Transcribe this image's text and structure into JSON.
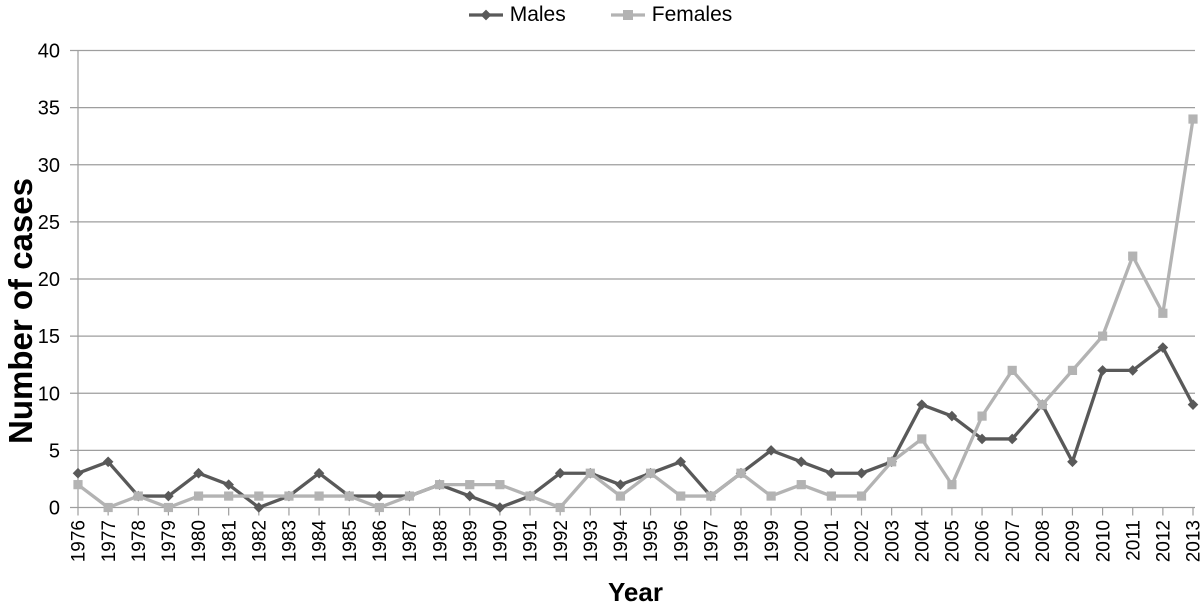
{
  "chart_data": {
    "type": "line",
    "title": "",
    "xlabel": "Year",
    "ylabel": "Number of cases",
    "x": [
      "1976",
      "1977",
      "1978",
      "1979",
      "1980",
      "1981",
      "1982",
      "1983",
      "1984",
      "1985",
      "1986",
      "1987",
      "1988",
      "1989",
      "1990",
      "1991",
      "1992",
      "1993",
      "1994",
      "1995",
      "1996",
      "1997",
      "1998",
      "1999",
      "2000",
      "2001",
      "2002",
      "2003",
      "2004",
      "2005",
      "2006",
      "2007",
      "2008",
      "2009",
      "2010",
      "2011",
      "2012",
      "2013"
    ],
    "series": [
      {
        "name": "Males",
        "marker": "diamond",
        "color": "#595959",
        "values": [
          3,
          4,
          1,
          1,
          3,
          2,
          0,
          1,
          3,
          1,
          1,
          1,
          2,
          1,
          0,
          1,
          3,
          3,
          2,
          3,
          4,
          1,
          3,
          5,
          4,
          3,
          3,
          4,
          9,
          8,
          6,
          6,
          9,
          4,
          12,
          12,
          14,
          9
        ]
      },
      {
        "name": "Females",
        "marker": "square",
        "color": "#b3b3b3",
        "values": [
          2,
          0,
          1,
          0,
          1,
          1,
          1,
          1,
          1,
          1,
          0,
          1,
          2,
          2,
          2,
          1,
          0,
          3,
          1,
          3,
          1,
          1,
          3,
          1,
          2,
          1,
          1,
          4,
          6,
          2,
          8,
          12,
          9,
          12,
          15,
          22,
          17,
          34
        ]
      }
    ],
    "ylim": [
      0,
      40
    ],
    "yticks": [
      0,
      5,
      10,
      15,
      20,
      25,
      30,
      35,
      40
    ],
    "grid": "horizontal",
    "legend_position": "top-center"
  },
  "colors": {
    "males": "#595959",
    "females": "#b3b3b3",
    "gridline": "#9e9e9e",
    "axis": "#9e9e9e",
    "text": "#000000",
    "background": "#ffffff"
  }
}
